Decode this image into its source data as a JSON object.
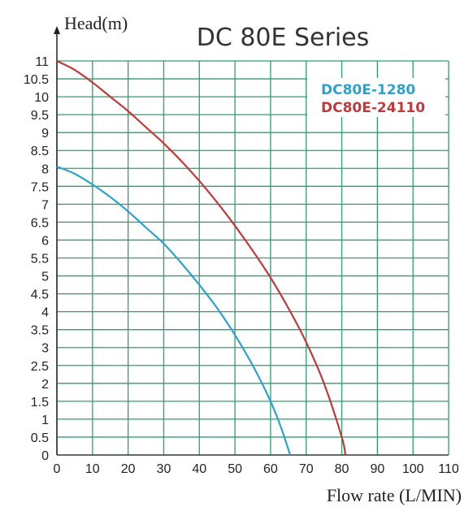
{
  "chart_data": {
    "type": "line",
    "title": "DC 80E Series",
    "xlabel": "Flow rate (L/MIN)",
    "ylabel": "Head(m)",
    "xlim": [
      0,
      110
    ],
    "ylim": [
      0,
      11
    ],
    "x_ticks": [
      "0",
      "10",
      "20",
      "30",
      "40",
      "50",
      "60",
      "70",
      "80",
      "90",
      "100",
      "110"
    ],
    "y_ticks": [
      "0",
      "0.5",
      "1",
      "1.5",
      "2",
      "2.5",
      "3",
      "3.5",
      "4",
      "4.5",
      "5",
      "5.5",
      "6",
      "6.5",
      "7",
      "7.5",
      "8",
      "8.5",
      "9",
      "9.5",
      "10",
      "10.5",
      "11"
    ],
    "grid": true,
    "grid_color": "#2e9e6e",
    "legend_position": "top-right",
    "series": [
      {
        "name": "DC80E-1280",
        "color": "#2aa3cf",
        "x": [
          0,
          5,
          10,
          15,
          20,
          25,
          30,
          35,
          40,
          45,
          50,
          55,
          60,
          63,
          65.5
        ],
        "y": [
          8.05,
          7.85,
          7.55,
          7.2,
          6.8,
          6.35,
          5.9,
          5.35,
          4.75,
          4.1,
          3.35,
          2.5,
          1.5,
          0.75,
          0
        ]
      },
      {
        "name": "DC80E-24110",
        "color": "#c0393b",
        "x": [
          0,
          5,
          10,
          15,
          20,
          25,
          30,
          35,
          40,
          45,
          50,
          55,
          60,
          65,
          70,
          75,
          80,
          81
        ],
        "y": [
          11.0,
          10.75,
          10.4,
          10.0,
          9.6,
          9.15,
          8.7,
          8.2,
          7.65,
          7.05,
          6.4,
          5.7,
          4.95,
          4.1,
          3.15,
          2.0,
          0.5,
          0
        ]
      }
    ]
  }
}
